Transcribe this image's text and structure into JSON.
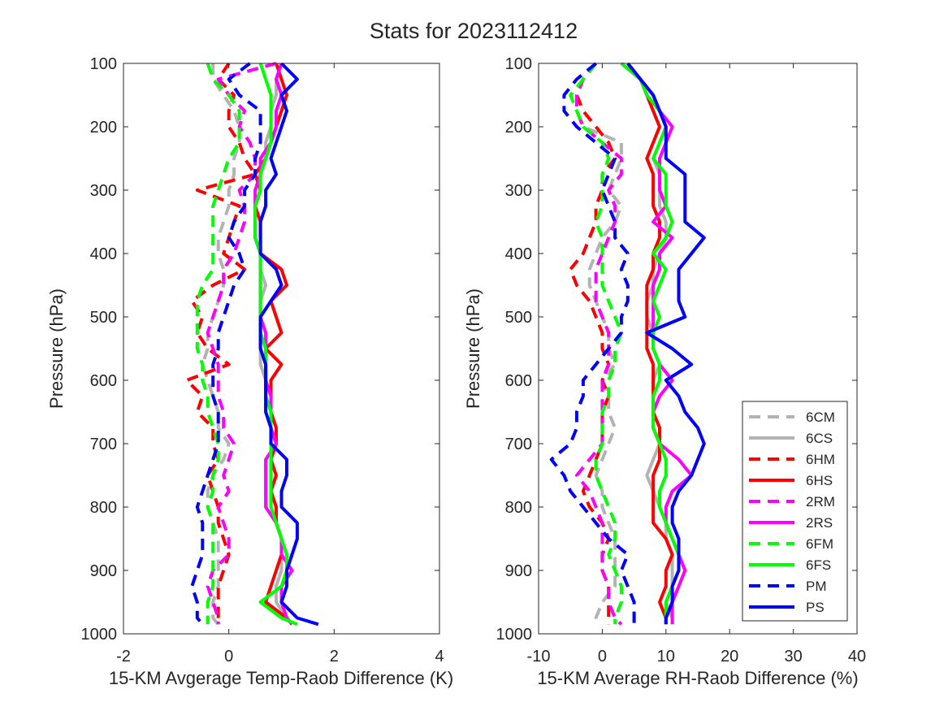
{
  "title": "Stats for 2023112412",
  "colors": {
    "6CM": "#b3b3b3",
    "6CS": "#b3b3b3",
    "6HM": "#ff0000",
    "6HS": "#ff0000",
    "2RM": "#ff00ff",
    "2RS": "#ff00ff",
    "6FM": "#00ff00",
    "6FS": "#00ff00",
    "PM": "#0000ff",
    "PS": "#0000ff"
  },
  "legend": {
    "location": "bottom-right of right panel",
    "entries": [
      {
        "name": "6CM",
        "style": "dashed"
      },
      {
        "name": "6CS",
        "style": "solid"
      },
      {
        "name": "6HM",
        "style": "dashed"
      },
      {
        "name": "6HS",
        "style": "solid"
      },
      {
        "name": "2RM",
        "style": "dashed"
      },
      {
        "name": "2RS",
        "style": "solid"
      },
      {
        "name": "6FM",
        "style": "dashed"
      },
      {
        "name": "6FS",
        "style": "solid"
      },
      {
        "name": "PM",
        "style": "dashed"
      },
      {
        "name": "PS",
        "style": "solid"
      }
    ]
  },
  "chart_data": [
    {
      "type": "line",
      "xlabel": "15-KM Avgerage Temp-Raob Difference (K)",
      "ylabel": "Pressure (hPa)",
      "xlim": [
        -2,
        4
      ],
      "ylim": [
        100,
        1000
      ],
      "y_reversed": true,
      "xticks": [
        "-2",
        "0",
        "2",
        "4"
      ],
      "yticks": [
        "100",
        "200",
        "300",
        "400",
        "500",
        "600",
        "700",
        "800",
        "900",
        "1000"
      ],
      "grid": false,
      "y": [
        100,
        125,
        150,
        175,
        200,
        225,
        250,
        275,
        300,
        325,
        350,
        375,
        400,
        425,
        450,
        475,
        500,
        525,
        550,
        575,
        600,
        625,
        650,
        675,
        700,
        725,
        750,
        775,
        800,
        825,
        850,
        875,
        900,
        925,
        950,
        975,
        985
      ],
      "series": [
        {
          "name": "6CM",
          "values": [
            -0.3,
            -0.3,
            -0.1,
            0.1,
            0.2,
            0.2,
            0.1,
            0.1,
            0.0,
            0.0,
            -0.1,
            -0.2,
            -0.2,
            -0.1,
            -0.1,
            -0.2,
            -0.3,
            -0.4,
            -0.4,
            -0.5,
            -0.4,
            -0.3,
            -0.2,
            -0.2,
            0.0,
            -0.1,
            -0.3,
            -0.4,
            -0.4,
            -0.3,
            -0.2,
            -0.2,
            -0.2,
            -0.2,
            -0.3,
            -0.3,
            -0.2
          ]
        },
        {
          "name": "6CS",
          "values": [
            1.0,
            0.9,
            0.9,
            0.8,
            0.8,
            0.7,
            0.7,
            0.6,
            0.6,
            0.5,
            0.5,
            0.5,
            0.6,
            0.6,
            0.7,
            0.6,
            0.6,
            0.6,
            0.6,
            0.6,
            0.7,
            0.7,
            0.7,
            0.8,
            0.8,
            0.8,
            0.8,
            0.8,
            0.9,
            0.9,
            1.0,
            1.0,
            1.0,
            0.9,
            0.9,
            1.1,
            1.2
          ]
        },
        {
          "name": "6HM",
          "values": [
            0.0,
            -0.2,
            0.1,
            0.0,
            0.0,
            0.2,
            0.3,
            0.5,
            -0.6,
            0.2,
            0.1,
            0.0,
            -0.1,
            0.3,
            -0.3,
            -0.7,
            -0.5,
            -0.6,
            -0.4,
            0.0,
            -0.8,
            -0.5,
            -0.6,
            -0.3,
            -0.3,
            -0.2,
            -0.4,
            -0.3,
            -0.2,
            -0.2,
            -0.1,
            0.0,
            -0.1,
            -0.2,
            -0.2,
            -0.2,
            -0.2
          ]
        },
        {
          "name": "6HS",
          "values": [
            0.9,
            1.0,
            1.1,
            1.0,
            0.9,
            0.8,
            0.7,
            0.5,
            0.6,
            0.5,
            0.6,
            0.6,
            0.6,
            1.0,
            1.1,
            0.8,
            0.9,
            1.0,
            0.7,
            1.0,
            0.8,
            0.8,
            0.8,
            0.9,
            0.9,
            0.8,
            0.9,
            0.8,
            0.9,
            0.9,
            1.0,
            1.0,
            0.9,
            0.8,
            0.7,
            1.1,
            1.2
          ]
        },
        {
          "name": "2RM",
          "values": [
            0.9,
            -0.2,
            0.0,
            0.3,
            0.2,
            0.4,
            0.5,
            0.5,
            0.2,
            0.3,
            0.3,
            0.2,
            0.1,
            -0.1,
            -0.1,
            -0.2,
            -0.3,
            -0.4,
            -0.3,
            -0.2,
            -0.2,
            -0.2,
            -0.1,
            -0.1,
            0.1,
            0.0,
            -0.1,
            0.0,
            -0.2,
            -0.1,
            0.0,
            0.0,
            -0.3,
            -0.4,
            -0.3,
            -0.2,
            -0.2
          ]
        },
        {
          "name": "2RS",
          "values": [
            1.0,
            0.9,
            1.0,
            0.9,
            0.9,
            0.8,
            0.6,
            0.6,
            0.5,
            0.5,
            0.5,
            0.5,
            0.6,
            0.6,
            0.6,
            0.6,
            0.6,
            0.7,
            0.7,
            0.7,
            0.7,
            0.8,
            0.8,
            0.8,
            0.9,
            0.7,
            0.7,
            0.7,
            0.7,
            0.9,
            1.0,
            1.0,
            1.2,
            1.0,
            1.0,
            1.1,
            1.2
          ]
        },
        {
          "name": "6FM",
          "values": [
            -0.4,
            -0.3,
            0.0,
            0.2,
            0.2,
            0.2,
            0.0,
            -0.1,
            -0.2,
            -0.3,
            -0.3,
            -0.3,
            -0.3,
            -0.3,
            -0.5,
            -0.6,
            -0.6,
            -0.6,
            -0.6,
            -0.5,
            -0.5,
            -0.4,
            -0.4,
            -0.3,
            -0.2,
            -0.2,
            -0.3,
            -0.3,
            -0.4,
            -0.3,
            -0.3,
            -0.3,
            -0.3,
            -0.3,
            -0.4,
            -0.4,
            -0.4
          ]
        },
        {
          "name": "6FS",
          "values": [
            0.6,
            0.7,
            0.8,
            0.8,
            0.8,
            0.8,
            0.7,
            0.6,
            0.6,
            0.5,
            0.5,
            0.5,
            0.6,
            0.6,
            0.6,
            0.6,
            0.6,
            0.6,
            0.7,
            0.7,
            0.7,
            0.7,
            0.8,
            0.8,
            0.8,
            0.8,
            0.8,
            0.8,
            0.8,
            0.9,
            1.0,
            1.1,
            1.1,
            1.0,
            0.6,
            1.0,
            1.3
          ]
        },
        {
          "name": "PM",
          "values": [
            0.4,
            0.0,
            0.2,
            0.6,
            0.6,
            0.6,
            0.5,
            0.5,
            0.3,
            0.3,
            0.1,
            0.0,
            0.2,
            0.3,
            0.1,
            0.0,
            -0.1,
            -0.2,
            -0.2,
            -0.3,
            -0.3,
            -0.3,
            -0.2,
            -0.2,
            -0.2,
            -0.3,
            -0.4,
            -0.5,
            -0.6,
            -0.5,
            -0.5,
            -0.5,
            -0.6,
            -0.7,
            -0.6,
            -0.6,
            -0.5
          ]
        },
        {
          "name": "PS",
          "values": [
            1.0,
            1.3,
            1.0,
            1.1,
            1.0,
            0.9,
            0.8,
            0.9,
            0.7,
            0.7,
            0.6,
            0.6,
            0.6,
            0.9,
            1.0,
            0.8,
            0.6,
            0.6,
            0.6,
            0.7,
            0.7,
            0.7,
            0.7,
            0.8,
            0.8,
            1.1,
            1.1,
            1.0,
            1.0,
            1.3,
            1.3,
            1.2,
            1.1,
            1.1,
            1.0,
            1.3,
            1.7
          ]
        }
      ]
    },
    {
      "type": "line",
      "xlabel": "15-KM Average RH-Raob Difference (%)",
      "ylabel": "Pressure (hPa)",
      "xlim": [
        -10,
        40
      ],
      "ylim": [
        100,
        1000
      ],
      "y_reversed": true,
      "xticks": [
        "-10",
        "0",
        "10",
        "20",
        "30",
        "40"
      ],
      "yticks": [
        "100",
        "200",
        "300",
        "400",
        "500",
        "600",
        "700",
        "800",
        "900",
        "1000"
      ],
      "grid": false,
      "y": [
        100,
        125,
        150,
        175,
        200,
        225,
        250,
        275,
        300,
        325,
        350,
        375,
        400,
        425,
        450,
        475,
        500,
        525,
        550,
        575,
        600,
        625,
        650,
        675,
        700,
        725,
        750,
        775,
        800,
        825,
        850,
        875,
        900,
        925,
        950,
        975,
        985
      ],
      "series": [
        {
          "name": "6CM",
          "values": [
            -1,
            -3,
            -4,
            -4,
            -3,
            3,
            3,
            2,
            1,
            3,
            2,
            0,
            -1,
            -2,
            -2,
            -1,
            0,
            1,
            1,
            2,
            0,
            1,
            1,
            2,
            1,
            0,
            -1,
            0,
            0,
            1,
            2,
            2,
            2,
            2,
            0,
            -1,
            -1
          ]
        },
        {
          "name": "6CS",
          "values": [
            3,
            6,
            7,
            9,
            10,
            9,
            8,
            9,
            9,
            9,
            10,
            10,
            9,
            8,
            8,
            7,
            7,
            8,
            8,
            9,
            8,
            8,
            8,
            8,
            9,
            8,
            7,
            8,
            9,
            10,
            10,
            11,
            11,
            11,
            10,
            11,
            11
          ]
        },
        {
          "name": "6HM",
          "values": [
            -1,
            -3,
            -4,
            -3,
            -1,
            1,
            2,
            0,
            0,
            -1,
            -1,
            -2,
            -3,
            -5,
            -4,
            -2,
            -1,
            0,
            0,
            1,
            0,
            1,
            0,
            0,
            0,
            -1,
            -2,
            -3,
            -2,
            0,
            1,
            0,
            0,
            1,
            1,
            1,
            1
          ]
        },
        {
          "name": "6HS",
          "values": [
            4,
            6,
            7,
            8,
            9,
            8,
            7,
            8,
            8,
            8,
            9,
            9,
            8,
            8,
            7,
            7,
            7,
            7,
            7,
            8,
            8,
            8,
            8,
            9,
            9,
            9,
            8,
            8,
            8,
            8,
            10,
            11,
            10,
            10,
            9,
            10,
            10
          ]
        },
        {
          "name": "2RM",
          "values": [
            -1,
            -3,
            -4,
            -4,
            -3,
            0,
            3,
            3,
            1,
            2,
            2,
            1,
            0,
            -1,
            -1,
            -1,
            0,
            1,
            1,
            1,
            0,
            0,
            0,
            0,
            0,
            -2,
            -4,
            -2,
            -1,
            0,
            0,
            0,
            0,
            1,
            1,
            2,
            3
          ]
        },
        {
          "name": "2RS",
          "values": [
            3,
            6,
            8,
            9,
            11,
            10,
            9,
            9,
            9,
            10,
            8,
            11,
            9,
            9,
            8,
            8,
            8,
            8,
            8,
            9,
            11,
            9,
            8,
            8,
            9,
            12,
            14,
            11,
            10,
            10,
            11,
            12,
            13,
            12,
            11,
            11,
            11
          ]
        },
        {
          "name": "6FM",
          "values": [
            -1,
            -3,
            -5,
            -4,
            -3,
            0,
            1,
            0,
            0,
            0,
            -1,
            0,
            0,
            0,
            0,
            1,
            2,
            3,
            2,
            2,
            1,
            1,
            0,
            0,
            0,
            -1,
            -1,
            0,
            1,
            2,
            2,
            1,
            2,
            3,
            3,
            2,
            2
          ]
        },
        {
          "name": "6FS",
          "values": [
            3,
            6,
            7,
            9,
            10,
            9,
            8,
            10,
            10,
            10,
            11,
            10,
            8,
            10,
            9,
            8,
            9,
            8,
            8,
            9,
            9,
            8,
            8,
            8,
            9,
            10,
            10,
            9,
            9,
            10,
            11,
            12,
            12,
            11,
            10,
            10,
            10
          ]
        },
        {
          "name": "PM",
          "values": [
            -1,
            -4,
            -6,
            -6,
            -4,
            -1,
            2,
            1,
            0,
            1,
            2,
            2,
            4,
            3,
            4,
            4,
            3,
            3,
            1,
            -1,
            -3,
            -3,
            -4,
            -4,
            -5,
            -8,
            -6,
            -5,
            -3,
            -1,
            1,
            4,
            3,
            4,
            5,
            5,
            5
          ]
        },
        {
          "name": "PS",
          "values": [
            4,
            6,
            8,
            9,
            10,
            10,
            10,
            13,
            13,
            13,
            13,
            16,
            14,
            12,
            12,
            12,
            13,
            7,
            11,
            14,
            10,
            12,
            13,
            15,
            16,
            15,
            14,
            12,
            11,
            11,
            12,
            12,
            12,
            11,
            11,
            10,
            10
          ]
        }
      ]
    }
  ]
}
